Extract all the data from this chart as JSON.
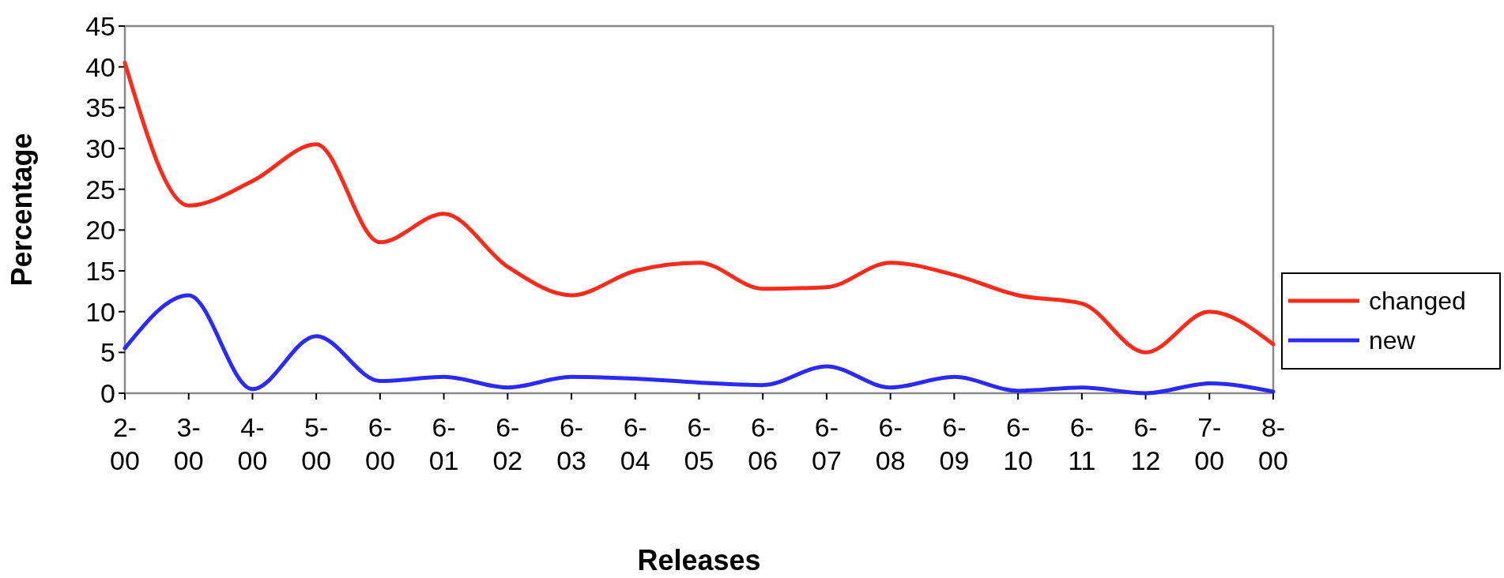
{
  "chart_data": {
    "type": "line",
    "xlabel": "Releases",
    "ylabel": "Percentage",
    "categories": [
      "2-00",
      "3-00",
      "4-00",
      "5-00",
      "6-00",
      "6-01",
      "6-02",
      "6-03",
      "6-04",
      "6-05",
      "6-06",
      "6-07",
      "6-08",
      "6-09",
      "6-10",
      "6-11",
      "6-12",
      "7-00",
      "8-00"
    ],
    "series": [
      {
        "name": "changed",
        "color": "#ff2a1a",
        "values": [
          40.5,
          23,
          26,
          30.5,
          18.5,
          22,
          15.5,
          12,
          15,
          16,
          12.8,
          13,
          16,
          14.5,
          12,
          11,
          5,
          10,
          6
        ]
      },
      {
        "name": "new",
        "color": "#2a2aff",
        "values": [
          5.5,
          12,
          0.5,
          7,
          1.5,
          2,
          0.7,
          2,
          1.8,
          1.3,
          1,
          3.3,
          0.7,
          2,
          0.3,
          0.7,
          0,
          1.2,
          0.2
        ]
      }
    ],
    "ylim": [
      0,
      45
    ],
    "yticks": [
      0,
      5,
      10,
      15,
      20,
      25,
      30,
      35,
      40,
      45
    ],
    "grid": false,
    "legend": "right",
    "marker": "none",
    "line_style": "solid"
  }
}
